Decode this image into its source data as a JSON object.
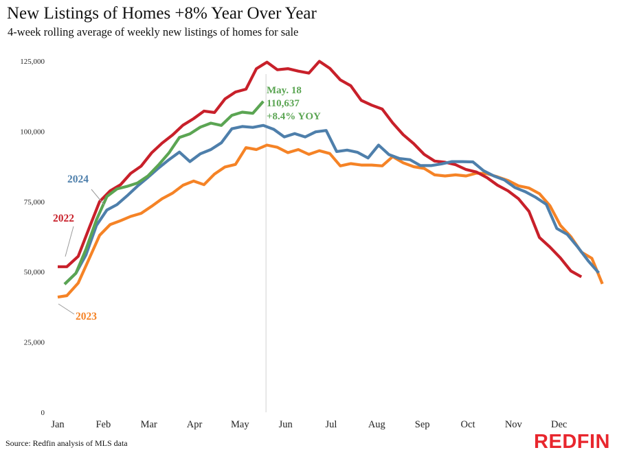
{
  "title": "New Listings of Homes +8% Year Over Year",
  "subtitle": "4-week rolling average of weekly new listings of homes for sale",
  "source": "Source: Redfin analysis of MLS data",
  "brand": "REDFIN",
  "chart_data": {
    "type": "line",
    "ylim": [
      0,
      125000
    ],
    "yticks": [
      0,
      25000,
      50000,
      75000,
      100000,
      125000
    ],
    "ytick_labels": [
      "0",
      "25,000",
      "50,000",
      "75,000",
      "100,000",
      "125,000"
    ],
    "xlim": [
      0,
      12
    ],
    "x_tick_positions": [
      0,
      1,
      2,
      3,
      4,
      5,
      6,
      7,
      8,
      9,
      10,
      11
    ],
    "x_tick_labels": [
      "Jan",
      "Feb",
      "Mar",
      "Apr",
      "May",
      "Jun",
      "Jul",
      "Aug",
      "Sep",
      "Oct",
      "Nov",
      "Dec"
    ],
    "grid": false,
    "reference_line_x": 4.57,
    "annotation": {
      "lines": [
        "May. 18",
        "110,637",
        "+8.4% YOY"
      ],
      "color": "#5ba553"
    },
    "series": [
      {
        "name": "2023",
        "color": "#f58326",
        "x": [
          0,
          0.2,
          0.45,
          0.7,
          0.92,
          1.15,
          1.38,
          1.6,
          1.83,
          2.06,
          2.29,
          2.52,
          2.75,
          2.98,
          3.21,
          3.44,
          3.67,
          3.9,
          4.13,
          4.36,
          4.59,
          4.82,
          5.05,
          5.28,
          5.51,
          5.74,
          5.97,
          6.2,
          6.43,
          6.66,
          6.89,
          7.12,
          7.35,
          7.58,
          7.81,
          8.04,
          8.27,
          8.5,
          8.73,
          8.96,
          9.19,
          9.42,
          9.65,
          9.88,
          10.11,
          10.34,
          10.57,
          10.8,
          11.03,
          11.26,
          11.49,
          11.72,
          11.95
        ],
        "y": [
          41000,
          41500,
          46000,
          55000,
          63000,
          66800,
          68200,
          69700,
          70800,
          73300,
          76000,
          78000,
          80800,
          82300,
          81000,
          84800,
          87300,
          88200,
          94200,
          93500,
          95100,
          94300,
          92400,
          93500,
          91800,
          93100,
          92100,
          87700,
          88500,
          88000,
          88000,
          87700,
          91000,
          88800,
          87400,
          86800,
          84500,
          84100,
          84500,
          84100,
          85100,
          84900,
          83800,
          82500,
          80600,
          79800,
          77800,
          73500,
          66500,
          62500,
          57000,
          54800,
          45700
        ]
      },
      {
        "name": "2022",
        "color": "#c8202a",
        "x": [
          0,
          0.2,
          0.45,
          0.7,
          0.92,
          1.15,
          1.38,
          1.6,
          1.83,
          2.06,
          2.29,
          2.52,
          2.75,
          2.98,
          3.21,
          3.44,
          3.67,
          3.9,
          4.13,
          4.36,
          4.59,
          4.82,
          5.05,
          5.28,
          5.51,
          5.74,
          5.97,
          6.2,
          6.43,
          6.66,
          6.89,
          7.12,
          7.35,
          7.58,
          7.81,
          8.04,
          8.27,
          8.5,
          8.73,
          8.96,
          9.19,
          9.42,
          9.65,
          9.88,
          10.11,
          10.34,
          10.57,
          10.8,
          11.03,
          11.26,
          11.49,
          11.72
        ],
        "y": [
          51800,
          51800,
          55500,
          66000,
          75000,
          78800,
          81000,
          85000,
          87600,
          92300,
          95800,
          98700,
          102200,
          104500,
          107200,
          106700,
          111500,
          114000,
          115000,
          122300,
          124600,
          121900,
          122300,
          121400,
          120700,
          124900,
          122400,
          118300,
          116200,
          111000,
          109300,
          107900,
          103000,
          98800,
          95600,
          91800,
          89400,
          89000,
          88100,
          86400,
          85500,
          83500,
          80800,
          78800,
          76000,
          71500,
          62200,
          58800,
          54900,
          50300,
          48200,
          null
        ]
      },
      {
        "name": "2024",
        "color": "#4e7fab",
        "x": [
          0.15,
          0.4,
          0.62,
          0.85,
          1.08,
          1.3,
          1.52,
          1.75,
          1.98,
          2.21,
          2.44,
          2.67,
          2.9,
          3.13,
          3.36,
          3.59,
          3.82,
          4.05,
          4.28,
          4.51,
          4.74,
          4.97,
          5.2,
          5.43,
          5.66,
          5.89,
          6.12,
          6.35,
          6.58,
          6.81,
          7.04,
          7.27,
          7.5,
          7.73,
          7.96,
          8.19,
          8.42,
          8.65,
          8.88,
          9.11,
          9.34,
          9.57,
          9.8,
          10.03,
          10.26,
          10.49,
          10.72,
          10.95,
          11.18,
          11.41,
          11.64,
          11.87
        ],
        "y": [
          45600,
          49500,
          56000,
          66500,
          72000,
          73900,
          77000,
          80500,
          83600,
          86900,
          89900,
          92600,
          89200,
          92000,
          93500,
          95900,
          100900,
          101700,
          101400,
          102100,
          100700,
          98000,
          99200,
          98000,
          99800,
          100300,
          92800,
          93300,
          92500,
          90500,
          95100,
          91700,
          90300,
          89900,
          87800,
          87800,
          88400,
          89200,
          89200,
          89100,
          86000,
          84100,
          82700,
          80000,
          78500,
          76500,
          74000,
          65400,
          63300,
          58800,
          53900,
          49600
        ]
      },
      {
        "name": "2024 (year-to-date)",
        "color": "#5ba553",
        "x": [
          0.15,
          0.4,
          0.62,
          0.85,
          1.08,
          1.3,
          1.52,
          1.75,
          1.98,
          2.21,
          2.44,
          2.67,
          2.9,
          3.13,
          3.36,
          3.59,
          3.82,
          4.05,
          4.28,
          4.51
        ],
        "y": [
          45600,
          49500,
          58000,
          68500,
          76800,
          79500,
          80400,
          81600,
          84100,
          88000,
          92300,
          97800,
          99100,
          101500,
          102900,
          102100,
          105700,
          106800,
          106400,
          110637
        ]
      }
    ]
  }
}
